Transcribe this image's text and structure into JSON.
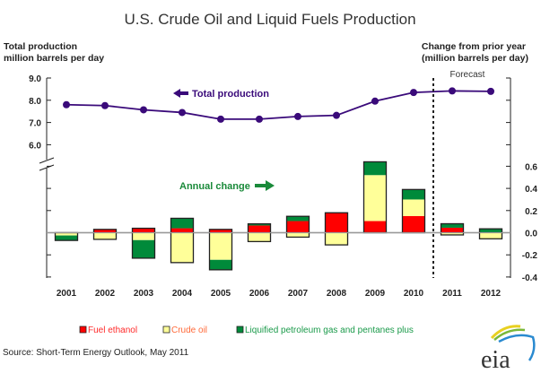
{
  "chart_data": {
    "type": "bar",
    "title": "U.S. Crude Oil and Liquid Fuels Production",
    "left_axis_title": [
      "Total production",
      "million barrels per day"
    ],
    "right_axis_title": [
      "Change from prior year",
      "(million barrels per day)"
    ],
    "categories": [
      "2001",
      "2002",
      "2003",
      "2004",
      "2005",
      "2006",
      "2007",
      "2008",
      "2009",
      "2010",
      "2011",
      "2012"
    ],
    "line_series": {
      "name": "Total production",
      "annotation": "Total production",
      "color": "#3a0a7a",
      "axis": "left",
      "values": [
        7.8,
        7.76,
        7.57,
        7.45,
        7.15,
        7.15,
        7.27,
        7.32,
        7.96,
        8.35,
        8.42,
        8.4
      ]
    },
    "left_axis": {
      "ylim": [
        5.0,
        9.0
      ],
      "ticks": [
        "9.0",
        "8.0",
        "7.0",
        "6.0"
      ],
      "tick_values": [
        9.0,
        8.0,
        7.0,
        6.0
      ],
      "break": true
    },
    "right_axis": {
      "ylim": [
        -0.4,
        0.6
      ],
      "ticks": [
        "0.6",
        "0.4",
        "0.2",
        "0.0",
        "-0.2",
        "-0.4"
      ],
      "tick_values": [
        0.6,
        0.4,
        0.2,
        0.0,
        -0.2,
        -0.4
      ]
    },
    "bar_annotation": "Annual change",
    "series": [
      {
        "name": "Fuel ethanol",
        "color": "#ff0000",
        "text_color": "#ff2a2a",
        "values": [
          0.0,
          0.03,
          0.04,
          0.04,
          0.03,
          0.065,
          0.105,
          0.18,
          0.105,
          0.15,
          0.045,
          0.0
        ]
      },
      {
        "name": "Crude oil",
        "color": "#ffff99",
        "text_color": "#ff6a3a",
        "values": [
          -0.025,
          -0.06,
          -0.067,
          -0.27,
          -0.245,
          -0.08,
          -0.04,
          -0.11,
          0.415,
          0.15,
          -0.02,
          -0.055
        ]
      },
      {
        "name": "Liquified petroleum gas and pentanes plus",
        "color": "#008a3a",
        "text_color": "#1a9a4a",
        "values": [
          -0.045,
          0.0,
          -0.163,
          0.09,
          -0.09,
          0.015,
          0.043,
          0.0,
          0.12,
          0.09,
          0.036,
          0.035
        ]
      }
    ],
    "forecast_label": "Forecast",
    "forecast_start_index": 10,
    "legend_position": "bottom"
  },
  "source": "Source: Short-Term Energy Outlook, May 2011",
  "logo": {
    "text": "eia",
    "name": "eia-logo"
  }
}
